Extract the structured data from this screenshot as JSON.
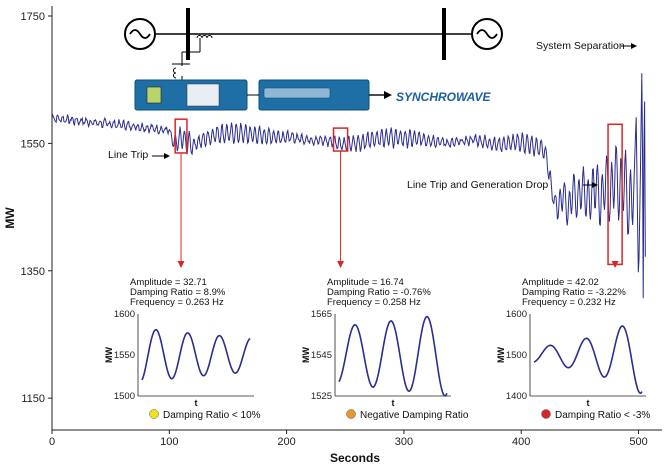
{
  "chart_data": {
    "type": "line",
    "xlabel": "Seconds",
    "ylabel": "MW",
    "xlim": [
      0,
      520
    ],
    "ylim": [
      1100,
      1750
    ],
    "xticks": [
      "0",
      "100",
      "200",
      "300",
      "400",
      "500"
    ],
    "yticks": [
      "1150",
      "1350",
      "1550",
      "1750"
    ],
    "grid": false,
    "line_color": "#2b2d8f",
    "highlight_color": "#d62728",
    "annotations": {
      "line_trip": "Line Trip",
      "line_trip_gen_drop": "Line Trip and Generation Drop",
      "system_separation": "System Separation"
    },
    "logo": "SYNCHROWAVE",
    "series": [
      {
        "x": [
          0,
          20,
          40,
          60,
          80,
          100,
          104,
          110,
          114,
          120,
          140,
          160,
          180,
          200,
          220,
          240,
          250,
          260,
          280,
          300,
          320,
          340,
          360,
          380,
          400,
          420,
          428,
          432,
          436,
          440,
          444,
          448,
          452,
          456,
          460,
          464,
          468,
          472,
          476,
          480,
          484,
          488,
          492,
          496,
          498,
          500,
          502,
          503,
          504,
          505,
          506
        ],
        "y": [
          1590,
          1586,
          1582,
          1579,
          1575,
          1570,
          1545,
          1560,
          1552,
          1548,
          1565,
          1566,
          1562,
          1560,
          1556,
          1553,
          1548,
          1550,
          1560,
          1558,
          1556,
          1550,
          1556,
          1548,
          1552,
          1540,
          1460,
          1450,
          1475,
          1440,
          1480,
          1455,
          1485,
          1460,
          1470,
          1490,
          1450,
          1500,
          1460,
          1510,
          1470,
          1500,
          1440,
          1490,
          1590,
          1320,
          1550,
          1690,
          1310,
          1700,
          1290
        ]
      }
    ],
    "events": [
      {
        "x_range": [
          105,
          115
        ],
        "y_range": [
          1535,
          1588
        ],
        "amplitude": "Amplitude = 32.71",
        "damping": "Damping Ratio = 8.9%",
        "frequency": "Frequency = 0.263 Hz",
        "ylim_label": [
          "1500",
          "1550",
          "1600"
        ],
        "ylim": [
          1500,
          1600
        ],
        "xlabel": "t",
        "ylabel": "MW",
        "legend": "Damping Ratio < 10%",
        "dot_color": "#f2e21c",
        "mini": {
          "center": 1550,
          "amp": 32.71,
          "cycles": 3.4,
          "growth": -0.15
        }
      },
      {
        "x_range": [
          240,
          252
        ],
        "y_range": [
          1538,
          1574
        ],
        "amplitude": "Amplitude = 16.74",
        "damping": "Damping Ratio = -0.76%",
        "frequency": "Frequency = 0.258  Hz",
        "ylim_label": [
          "1525",
          "1545",
          "1565"
        ],
        "ylim": [
          1525,
          1565
        ],
        "xlabel": "t",
        "ylabel": "MW",
        "legend": "Negative Damping Ratio",
        "dot_color": "#e8952c",
        "mini": {
          "center": 1545,
          "amp": 16.74,
          "cycles": 3.0,
          "growth": 0.12
        }
      },
      {
        "x_range": [
          474,
          486
        ],
        "y_range": [
          1360,
          1580
        ],
        "amplitude": "Amplitude = 42.02",
        "damping": "Damping Ratio = -3.22%",
        "frequency": "Frequency = 0.232 Hz",
        "ylim_label": [
          "1400",
          "1500",
          "1600"
        ],
        "ylim": [
          1400,
          1600
        ],
        "xlabel": "t",
        "ylabel": "MW",
        "legend": "Damping Ratio < -3%",
        "dot_color": "#d62728",
        "mini": {
          "center": 1500,
          "amp": 42.02,
          "cycles": 3.0,
          "growth": 0.55
        }
      }
    ]
  }
}
